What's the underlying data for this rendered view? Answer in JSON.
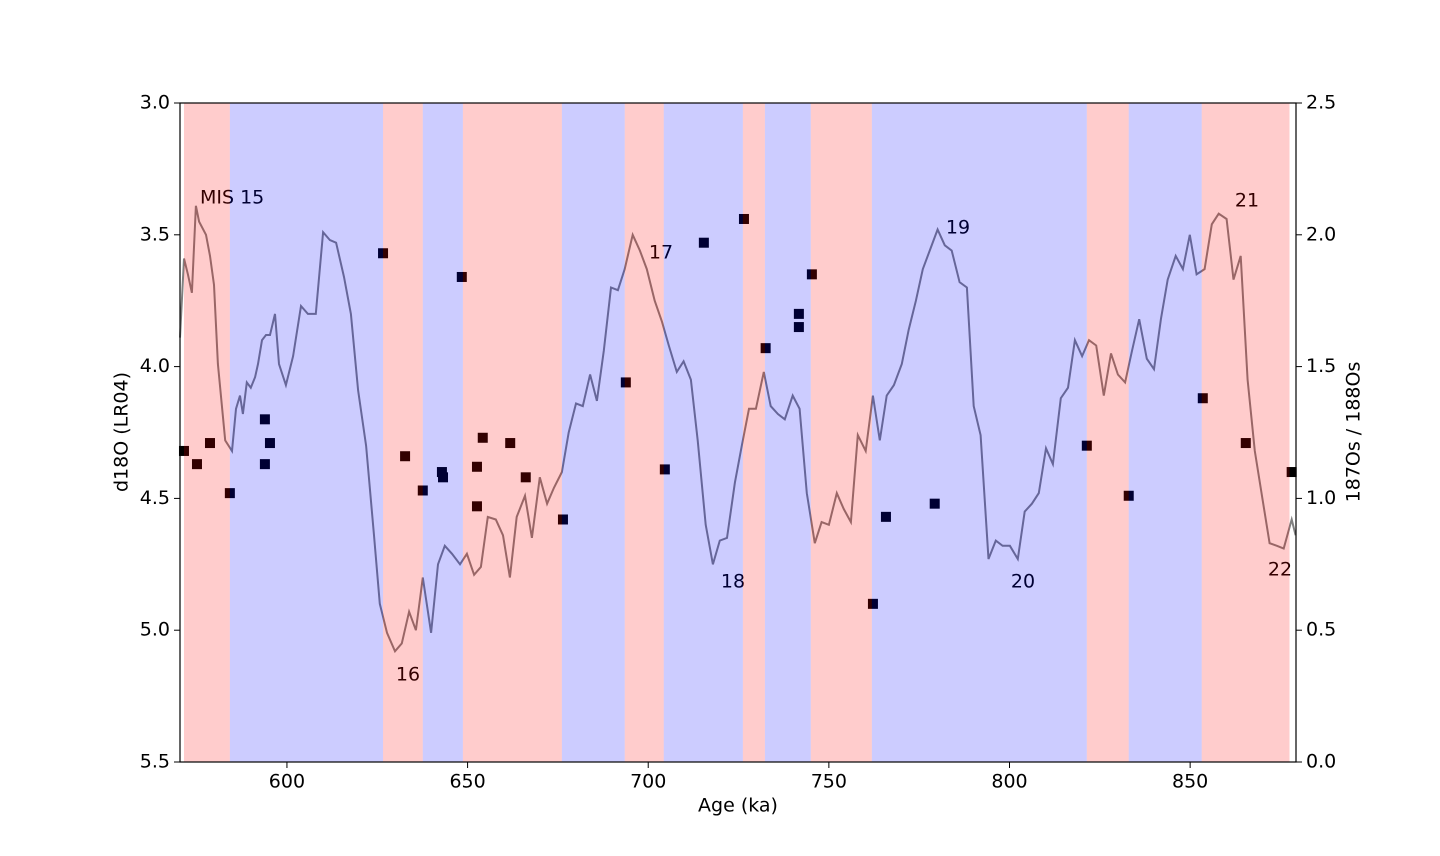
{
  "chart_data": {
    "type": "line-scatter",
    "x_label": "Age (ka)",
    "y_label": "d18O (LR04)",
    "y2_label": "187Os / 188Os",
    "xlim": [
      570.4,
      879.3
    ],
    "xticks": [
      600,
      650,
      700,
      750,
      800,
      850
    ],
    "ylim": [
      5.5,
      3.0
    ],
    "y_inverted": true,
    "yticks": [
      {
        "value": 3,
        "label": "3.0"
      },
      3.5,
      {
        "value": 4,
        "label": "4.0"
      },
      4.5,
      {
        "value": 5,
        "label": "5.0"
      },
      5.5
    ],
    "y2lim": [
      0,
      2.5
    ],
    "y2ticks": [
      {
        "value": 0,
        "label": "0.0"
      },
      0.5,
      {
        "value": 1,
        "label": "1.0"
      },
      1.5,
      {
        "value": 2,
        "label": "2.0"
      },
      2.5
    ],
    "band_opacity": 0.2,
    "bands": [
      {
        "start": 571.5,
        "end": 584.2,
        "color": "#ff0000"
      },
      {
        "start": 584.2,
        "end": 626.6,
        "color": "#0000ff"
      },
      {
        "start": 626.6,
        "end": 637.6,
        "color": "#ff0000"
      },
      {
        "start": 637.6,
        "end": 648.7,
        "color": "#0000ff"
      },
      {
        "start": 648.7,
        "end": 676.1,
        "color": "#ff0000"
      },
      {
        "start": 676.1,
        "end": 693.5,
        "color": "#0000ff"
      },
      {
        "start": 693.5,
        "end": 704.3,
        "color": "#ff0000"
      },
      {
        "start": 704.3,
        "end": 726.2,
        "color": "#0000ff"
      },
      {
        "start": 726.2,
        "end": 732.3,
        "color": "#ff0000"
      },
      {
        "start": 732.3,
        "end": 745.0,
        "color": "#0000ff"
      },
      {
        "start": 745.0,
        "end": 761.9,
        "color": "#ff0000"
      },
      {
        "start": 761.9,
        "end": 821.4,
        "color": "#0000ff"
      },
      {
        "start": 821.4,
        "end": 833.0,
        "color": "#ff0000"
      },
      {
        "start": 833.0,
        "end": 853.2,
        "color": "#0000ff"
      },
      {
        "start": 853.2,
        "end": 877.5,
        "color": "#ff0000"
      }
    ],
    "annotations": [
      "MIS 15",
      "16",
      "17",
      "18",
      "19",
      "20",
      "21",
      "22"
    ],
    "series": [
      {
        "type": "line",
        "color": "#808080",
        "x": [
          570.4,
          571.5,
          572.6,
          573.7,
          574.8,
          575.7,
          577.6,
          578.7,
          579.8,
          580.9,
          582.9,
          584.8,
          585.9,
          587.0,
          587.8,
          588.9,
          590.0,
          591.2,
          592.0,
          593.1,
          594.2,
          595.3,
          596.7,
          597.8,
          599.7,
          601.7,
          603.9,
          605.8,
          608.0,
          610.0,
          611.9,
          613.6,
          615.8,
          617.7,
          619.7,
          621.9,
          624.1,
          625.7,
          627.7,
          629.9,
          631.8,
          633.8,
          635.7,
          637.6,
          639.9,
          641.8,
          643.7,
          645.7,
          647.9,
          649.8,
          651.8,
          653.7,
          655.6,
          657.8,
          659.8,
          661.7,
          663.6,
          665.9,
          667.8,
          670.0,
          672.0,
          673.9,
          676.1,
          678.0,
          680.0,
          681.9,
          683.9,
          685.8,
          687.7,
          689.7,
          691.6,
          693.5,
          695.7,
          697.7,
          699.6,
          701.8,
          703.8,
          705.7,
          707.9,
          709.8,
          711.8,
          713.7,
          715.9,
          717.9,
          719.8,
          721.8,
          724.0,
          725.9,
          727.9,
          729.8,
          732.0,
          733.9,
          735.9,
          737.8,
          740.0,
          741.9,
          743.9,
          746.1,
          748.0,
          750.0,
          752.2,
          754.1,
          756.1,
          758.0,
          760.2,
          762.2,
          764.1,
          766.0,
          768.0,
          770.2,
          772.1,
          774.1,
          776.0,
          778.2,
          780.1,
          782.1,
          784.0,
          786.2,
          788.2,
          790.1,
          792.0,
          794.2,
          796.2,
          798.1,
          800.1,
          802.3,
          804.2,
          806.2,
          808.1,
          810.1,
          812.0,
          814.2,
          816.2,
          818.1,
          820.1,
          822.0,
          824.0,
          826.1,
          828.1,
          830.0,
          832.0,
          833.9,
          835.9,
          838.0,
          840.0,
          841.9,
          843.8,
          846.0,
          848.0,
          849.9,
          851.8,
          854.0,
          856.0,
          857.9,
          860.1,
          862.0,
          864.0,
          865.9,
          867.9,
          870.1,
          872.0,
          874.0,
          875.9,
          878.1,
          879.2
        ],
        "values": [
          3.89,
          3.59,
          3.65,
          3.72,
          3.39,
          3.45,
          3.5,
          3.58,
          3.69,
          3.99,
          4.28,
          4.32,
          4.16,
          4.11,
          4.18,
          4.06,
          4.08,
          4.04,
          3.99,
          3.9,
          3.88,
          3.88,
          3.8,
          3.99,
          4.07,
          3.96,
          3.77,
          3.8,
          3.8,
          3.49,
          3.52,
          3.53,
          3.66,
          3.8,
          4.09,
          4.3,
          4.64,
          4.9,
          5.01,
          5.08,
          5.05,
          4.93,
          5.0,
          4.8,
          5.01,
          4.75,
          4.68,
          4.71,
          4.75,
          4.71,
          4.79,
          4.76,
          4.57,
          4.58,
          4.64,
          4.8,
          4.57,
          4.49,
          4.65,
          4.42,
          4.52,
          4.46,
          4.4,
          4.25,
          4.14,
          4.15,
          4.03,
          4.13,
          3.94,
          3.7,
          3.71,
          3.63,
          3.5,
          3.56,
          3.63,
          3.75,
          3.83,
          3.92,
          4.02,
          3.98,
          4.05,
          4.28,
          4.6,
          4.75,
          4.66,
          4.65,
          4.44,
          4.3,
          4.16,
          4.16,
          4.02,
          4.15,
          4.18,
          4.2,
          4.11,
          4.16,
          4.48,
          4.67,
          4.59,
          4.6,
          4.48,
          4.54,
          4.59,
          4.26,
          4.32,
          4.11,
          4.28,
          4.11,
          4.07,
          3.99,
          3.86,
          3.75,
          3.63,
          3.55,
          3.48,
          3.54,
          3.56,
          3.68,
          3.7,
          4.15,
          4.26,
          4.73,
          4.66,
          4.68,
          4.68,
          4.73,
          4.55,
          4.52,
          4.48,
          4.31,
          4.37,
          4.12,
          4.08,
          3.9,
          3.96,
          3.9,
          3.92,
          4.11,
          3.95,
          4.03,
          4.06,
          3.94,
          3.82,
          3.97,
          4.01,
          3.82,
          3.67,
          3.58,
          3.63,
          3.5,
          3.65,
          3.63,
          3.46,
          3.42,
          3.44,
          3.67,
          3.58,
          4.05,
          4.32,
          4.51,
          4.67,
          4.68,
          4.69,
          4.58,
          4.64
        ]
      },
      {
        "type": "scatter",
        "axis": "y2",
        "color": "#000000",
        "x": [
          571.5,
          575.1,
          578.7,
          584.2,
          593.9,
          595.3,
          593.9,
          626.6,
          632.7,
          637.6,
          642.9,
          643.2,
          648.4,
          652.6,
          654.2,
          652.6,
          661.8,
          666.1,
          676.4,
          693.8,
          704.6,
          715.4,
          726.5,
          732.5,
          741.7,
          741.7,
          745.3,
          762.2,
          765.8,
          779.3,
          821.4,
          833.0,
          853.5,
          865.4,
          878.1
        ],
        "values": [
          1.18,
          1.13,
          1.21,
          1.02,
          1.3,
          1.21,
          1.13,
          1.93,
          1.16,
          1.03,
          1.1,
          1.08,
          1.84,
          1.12,
          1.23,
          0.97,
          1.21,
          1.08,
          0.92,
          1.44,
          1.11,
          1.97,
          2.06,
          1.57,
          1.7,
          1.65,
          1.85,
          0.6,
          0.93,
          0.98,
          1.2,
          1.01,
          1.38,
          1.21,
          1.1
        ]
      }
    ]
  }
}
